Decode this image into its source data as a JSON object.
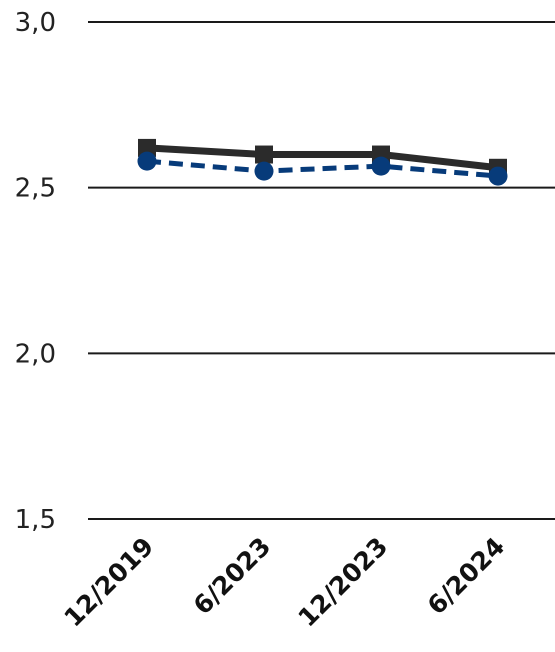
{
  "chart_data": {
    "type": "line",
    "categories": [
      "12/2019",
      "6/2023",
      "12/2023",
      "6/2024"
    ],
    "series": [
      {
        "values": [
          2.62,
          2.6,
          2.6,
          2.56
        ],
        "color": "#2b2b2b",
        "line_style": "solid",
        "marker": "square"
      },
      {
        "values": [
          2.58,
          2.55,
          2.565,
          2.535
        ],
        "color": "#073b7a",
        "line_style": "dashed",
        "marker": "circle"
      }
    ],
    "ylim": [
      1.5,
      3.0
    ],
    "y_ticks": [
      {
        "value": 3.0,
        "label": "3,0"
      },
      {
        "value": 2.5,
        "label": "2,5"
      },
      {
        "value": 2.0,
        "label": "2,0"
      },
      {
        "value": 1.5,
        "label": "1,5"
      }
    ],
    "grid": "horizontal",
    "legend": "none"
  }
}
